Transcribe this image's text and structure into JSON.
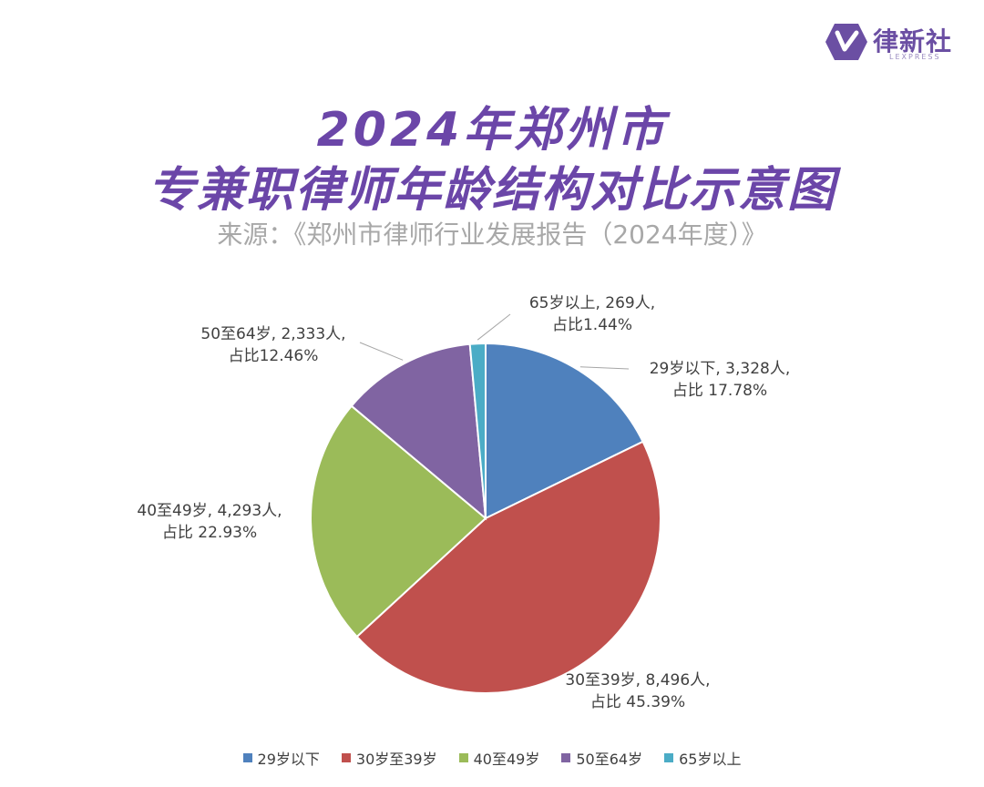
{
  "brand": {
    "name": "律新社",
    "sub": "LEXPRESS"
  },
  "header": {
    "title_line1": "2024年郑州市",
    "title_line2": "专兼职律师年龄结构对比示意图",
    "source": "来源：《郑州市律师行业发展报告（2024年度）》"
  },
  "colors": {
    "title": "#6b46a8",
    "brand": "#6b4fa3"
  },
  "chart_data": {
    "type": "pie",
    "title": "2024年郑州市专兼职律师年龄结构对比示意图",
    "legend_position": "bottom",
    "slices": [
      {
        "category": "29岁以下",
        "value": 3328,
        "percent": 17.78,
        "color": "#4f81bd",
        "label_line1": "29岁以下, 3,328人,",
        "label_line2": "占比 17.78%"
      },
      {
        "category": "30岁至39岁",
        "value": 8496,
        "percent": 45.39,
        "color": "#c0504d",
        "label_line1": "30至39岁, 8,496人,",
        "label_line2": "占比 45.39%"
      },
      {
        "category": "40至49岁",
        "value": 4293,
        "percent": 22.93,
        "color": "#9bbb59",
        "label_line1": "40至49岁, 4,293人,",
        "label_line2": "占比 22.93%"
      },
      {
        "category": "50至64岁",
        "value": 2333,
        "percent": 12.46,
        "color": "#8064a2",
        "label_line1": "50至64岁, 2,333人,",
        "label_line2": "占比12.46%"
      },
      {
        "category": "65岁以上",
        "value": 269,
        "percent": 1.44,
        "color": "#4bacc6",
        "label_line1": "65岁以上, 269人,",
        "label_line2": "占比1.44%"
      }
    ]
  }
}
